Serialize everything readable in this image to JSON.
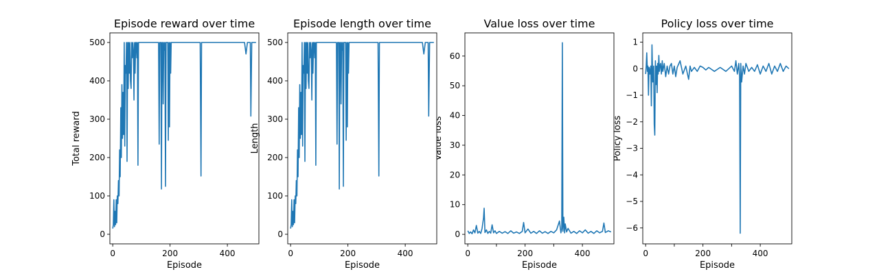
{
  "chart_data": [
    {
      "type": "line",
      "title": "Episode reward over time",
      "xlabel": "Episode",
      "ylabel": "Total reward",
      "xlim": [
        -10,
        510
      ],
      "ylim": [
        -25,
        525
      ],
      "xticks": [
        0,
        200,
        400
      ],
      "yticks": [
        0,
        100,
        200,
        300,
        400,
        500
      ],
      "color": "#1f77b4",
      "series": [
        {
          "x": [
            0,
            2,
            4,
            6,
            8,
            10,
            12,
            14,
            16,
            18,
            20,
            22,
            24,
            26,
            28,
            30,
            32,
            34,
            36,
            38,
            40,
            42,
            44,
            46,
            48,
            50,
            52,
            54,
            56,
            58,
            60,
            62,
            64,
            66,
            68,
            70,
            72,
            74,
            76,
            78,
            80,
            82,
            84,
            86,
            88,
            90,
            95,
            100,
            120,
            140,
            158,
            160,
            162,
            164,
            166,
            168,
            170,
            172,
            174,
            176,
            178,
            180,
            182,
            184,
            186,
            188,
            190,
            192,
            194,
            196,
            198,
            200,
            202,
            204,
            206,
            208,
            210,
            250,
            300,
            305,
            308,
            310,
            320,
            330,
            400,
            450,
            455,
            460,
            465,
            470,
            475,
            480,
            482,
            485,
            490,
            500
          ],
          "y": [
            15,
            25,
            90,
            20,
            60,
            25,
            90,
            30,
            100,
            80,
            140,
            100,
            220,
            150,
            330,
            200,
            390,
            250,
            370,
            260,
            500,
            230,
            440,
            420,
            500,
            190,
            500,
            380,
            500,
            420,
            500,
            400,
            380,
            500,
            460,
            500,
            480,
            350,
            500,
            420,
            500,
            500,
            460,
            500,
            180,
            500,
            500,
            500,
            500,
            500,
            500,
            500,
            235,
            500,
            500,
            500,
            118,
            500,
            500,
            340,
            500,
            480,
            500,
            125,
            500,
            500,
            500,
            500,
            245,
            500,
            280,
            500,
            420,
            500,
            500,
            500,
            500,
            500,
            500,
            500,
            152,
            500,
            500,
            500,
            500,
            500,
            500,
            500,
            470,
            500,
            500,
            500,
            308,
            500,
            500,
            500
          ]
        }
      ]
    },
    {
      "type": "line",
      "title": "Episode length over time",
      "xlabel": "Episode",
      "ylabel": "Length",
      "xlim": [
        -10,
        510
      ],
      "ylim": [
        -25,
        525
      ],
      "xticks": [
        0,
        200,
        400
      ],
      "yticks": [
        0,
        100,
        200,
        300,
        400,
        500
      ],
      "color": "#1f77b4",
      "series": [
        {
          "x": [
            0,
            2,
            4,
            6,
            8,
            10,
            12,
            14,
            16,
            18,
            20,
            22,
            24,
            26,
            28,
            30,
            32,
            34,
            36,
            38,
            40,
            42,
            44,
            46,
            48,
            50,
            52,
            54,
            56,
            58,
            60,
            62,
            64,
            66,
            68,
            70,
            72,
            74,
            76,
            78,
            80,
            82,
            84,
            86,
            88,
            90,
            95,
            100,
            120,
            140,
            158,
            160,
            162,
            164,
            166,
            168,
            170,
            172,
            174,
            176,
            178,
            180,
            182,
            184,
            186,
            188,
            190,
            192,
            194,
            196,
            198,
            200,
            202,
            204,
            206,
            208,
            210,
            250,
            300,
            305,
            308,
            310,
            320,
            330,
            400,
            450,
            455,
            460,
            465,
            470,
            475,
            480,
            482,
            485,
            490,
            500
          ],
          "y": [
            15,
            25,
            90,
            20,
            60,
            25,
            90,
            30,
            100,
            80,
            140,
            100,
            220,
            150,
            330,
            200,
            390,
            250,
            370,
            260,
            500,
            230,
            440,
            420,
            500,
            190,
            500,
            380,
            500,
            420,
            500,
            400,
            380,
            500,
            460,
            500,
            480,
            350,
            500,
            420,
            500,
            500,
            460,
            500,
            180,
            500,
            500,
            500,
            500,
            500,
            500,
            500,
            235,
            500,
            500,
            500,
            118,
            500,
            500,
            340,
            500,
            480,
            500,
            125,
            500,
            500,
            500,
            500,
            245,
            500,
            280,
            500,
            420,
            500,
            500,
            500,
            500,
            500,
            500,
            500,
            152,
            500,
            500,
            500,
            500,
            500,
            500,
            500,
            470,
            500,
            500,
            500,
            308,
            500,
            500,
            500
          ]
        }
      ]
    },
    {
      "type": "line",
      "title": "Value loss over time",
      "xlabel": "Episode",
      "ylabel": "Value loss",
      "xlim": [
        -10,
        510
      ],
      "ylim": [
        -3.2,
        67.8
      ],
      "xticks": [
        0,
        100,
        200,
        300,
        400
      ],
      "xticklabels": [
        "0",
        "",
        "200",
        "",
        "400"
      ],
      "yticks": [
        0,
        10,
        20,
        30,
        40,
        50,
        60
      ],
      "color": "#1f77b4",
      "series": [
        {
          "x": [
            0,
            5,
            10,
            15,
            20,
            25,
            30,
            35,
            40,
            45,
            50,
            55,
            57,
            60,
            65,
            70,
            75,
            80,
            85,
            90,
            95,
            100,
            110,
            120,
            130,
            140,
            150,
            160,
            170,
            180,
            190,
            195,
            200,
            210,
            220,
            230,
            240,
            250,
            260,
            270,
            280,
            290,
            300,
            310,
            320,
            325,
            328,
            330,
            332,
            335,
            338,
            340,
            345,
            350,
            360,
            370,
            380,
            390,
            400,
            410,
            420,
            430,
            440,
            450,
            460,
            470,
            475,
            480,
            490,
            500
          ],
          "y": [
            1.2,
            0.3,
            0.8,
            0.2,
            1.5,
            0.5,
            3.0,
            0.4,
            1.0,
            0.3,
            2.0,
            5.5,
            8.8,
            0.6,
            1.5,
            0.3,
            1.0,
            0.4,
            3.2,
            0.5,
            1.2,
            0.3,
            1.0,
            0.4,
            0.9,
            0.3,
            1.2,
            0.4,
            0.8,
            0.3,
            1.0,
            4.0,
            0.5,
            1.8,
            0.4,
            1.0,
            0.3,
            1.2,
            0.4,
            0.9,
            0.3,
            1.0,
            0.5,
            1.5,
            4.5,
            0.5,
            2.0,
            64.5,
            1.0,
            5.8,
            0.5,
            3.5,
            0.8,
            2.0,
            0.4,
            1.0,
            0.3,
            1.2,
            0.5,
            1.5,
            0.4,
            1.0,
            0.3,
            1.2,
            0.5,
            1.0,
            3.8,
            0.6,
            1.2,
            0.8
          ]
        }
      ]
    },
    {
      "type": "line",
      "title": "Policy loss over time",
      "xlabel": "Episode",
      "ylabel": "Policy loss",
      "xlim": [
        -10,
        510
      ],
      "ylim": [
        -6.6,
        1.35
      ],
      "xticks": [
        0,
        100,
        200,
        300,
        400
      ],
      "xticklabels": [
        "0",
        "",
        "200",
        "",
        "400"
      ],
      "yticks": [
        -6,
        -5,
        -4,
        -3,
        -2,
        -1,
        0,
        1
      ],
      "color": "#1f77b4",
      "series": [
        {
          "x": [
            0,
            2,
            4,
            6,
            8,
            10,
            12,
            15,
            18,
            20,
            22,
            25,
            28,
            30,
            32,
            34,
            36,
            38,
            40,
            42,
            44,
            46,
            48,
            50,
            52,
            55,
            58,
            60,
            65,
            70,
            75,
            80,
            85,
            90,
            95,
            100,
            105,
            110,
            120,
            130,
            140,
            150,
            155,
            160,
            170,
            180,
            190,
            200,
            210,
            220,
            240,
            260,
            280,
            300,
            310,
            315,
            320,
            325,
            328,
            330,
            332,
            335,
            340,
            345,
            350,
            360,
            370,
            380,
            390,
            400,
            410,
            420,
            430,
            440,
            450,
            460,
            470,
            480,
            490,
            500
          ],
          "y": [
            -0.2,
            0.1,
            0.6,
            -0.1,
            0.1,
            -1.0,
            0.05,
            -0.2,
            0.1,
            -1.4,
            0.9,
            -0.5,
            0.1,
            -2.1,
            -2.5,
            0.3,
            -0.6,
            0.1,
            -0.9,
            0.2,
            -0.2,
            0.5,
            -0.1,
            0.1,
            0.2,
            -0.2,
            0.3,
            -0.1,
            0.2,
            -0.3,
            0.1,
            -0.2,
            0.1,
            0.2,
            -0.2,
            0.1,
            -0.3,
            0.05,
            0.3,
            -0.2,
            0.1,
            -0.4,
            0.1,
            -0.1,
            0.05,
            -0.1,
            0.1,
            0.05,
            -0.05,
            0.05,
            -0.1,
            0.05,
            -0.1,
            0.1,
            -0.1,
            0.3,
            -0.2,
            0.2,
            -0.3,
            -6.2,
            0.2,
            -0.5,
            0.1,
            -0.2,
            0.2,
            -0.1,
            0.05,
            -0.1,
            0.15,
            -0.2,
            0.1,
            -0.1,
            0.2,
            -0.2,
            0.1,
            -0.1,
            0.2,
            -0.1,
            0.1,
            0.0
          ]
        }
      ]
    }
  ]
}
